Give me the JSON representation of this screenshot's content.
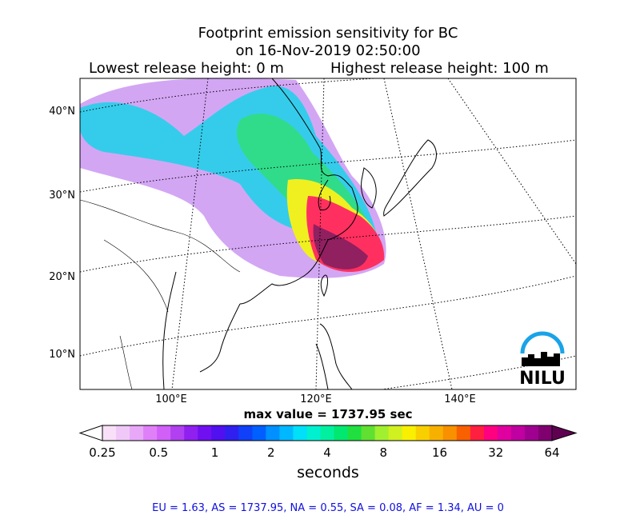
{
  "title": {
    "line1": "Footprint emission sensitivity for BC",
    "line2": "on 16-Nov-2019 02:50:00",
    "lowest": "Lowest release height: 0 m",
    "highest": "Highest release height: 100 m"
  },
  "map": {
    "lat_labels": [
      "40°N",
      "30°N",
      "20°N",
      "10°N"
    ],
    "lon_labels": [
      "100°E",
      "120°E",
      "140°E"
    ],
    "logo": "NILU"
  },
  "max_value": "max value = 1737.95 sec",
  "colorbar": {
    "ticks": [
      "0.25",
      "0.5",
      "1",
      "2",
      "4",
      "8",
      "16",
      "32",
      "64"
    ],
    "label": "seconds"
  },
  "footer": "EU = 1.63,  AS = 1737.95,  NA = 0.55,  SA = 0.08,  AF = 1.34,  AU = 0"
}
